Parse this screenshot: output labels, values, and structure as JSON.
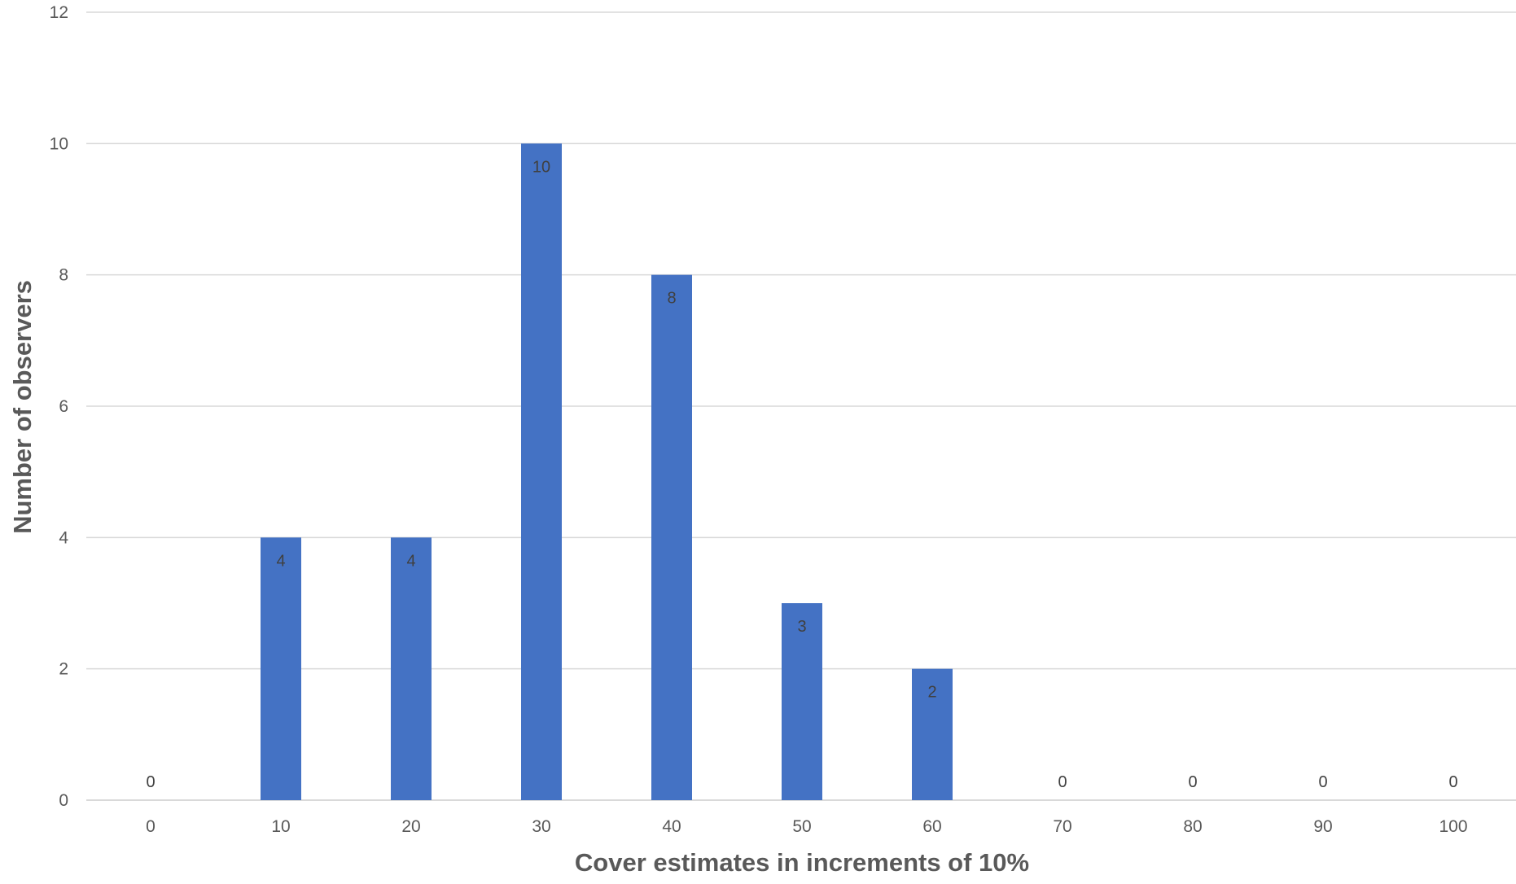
{
  "chart_data": {
    "type": "bar",
    "title": "",
    "xlabel": "Cover estimates in increments of 10%",
    "ylabel": "Number of observers",
    "categories": [
      "0",
      "10",
      "20",
      "30",
      "40",
      "50",
      "60",
      "70",
      "80",
      "90",
      "100"
    ],
    "values": [
      0,
      4,
      4,
      10,
      8,
      3,
      2,
      0,
      0,
      0,
      0
    ],
    "ylim": [
      0,
      12
    ],
    "yticks": [
      0,
      2,
      4,
      6,
      8,
      10,
      12
    ],
    "grid": true,
    "legend": "none",
    "data_labels": true,
    "bar_color": "#4472c4"
  }
}
